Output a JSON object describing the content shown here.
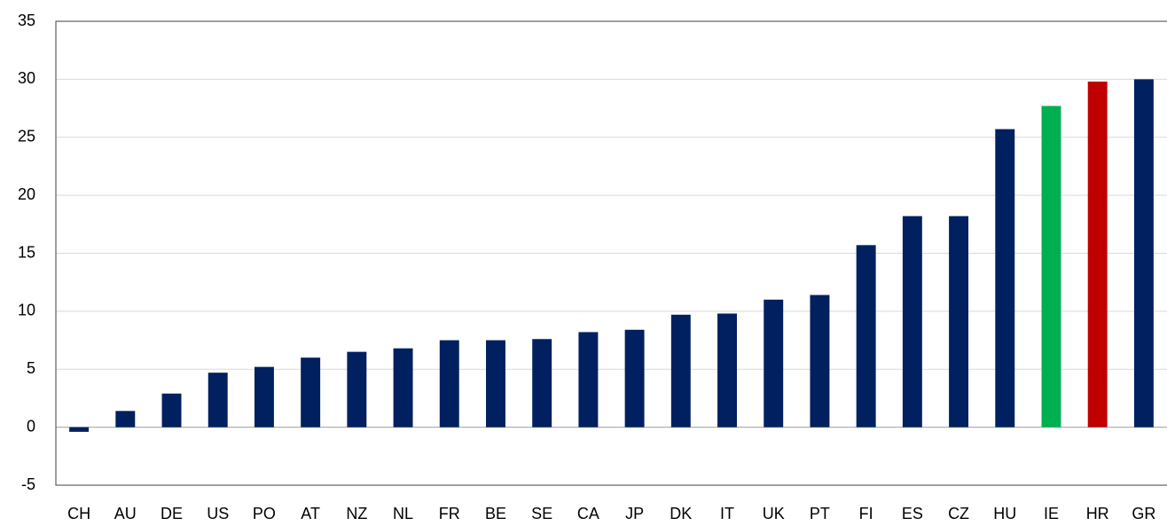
{
  "chart_data": {
    "type": "bar",
    "categories": [
      "CH",
      "AU",
      "DE",
      "US",
      "PO",
      "AT",
      "NZ",
      "NL",
      "FR",
      "BE",
      "SE",
      "CA",
      "JP",
      "DK",
      "IT",
      "UK",
      "PT",
      "FI",
      "ES",
      "CZ",
      "HU",
      "IE",
      "HR",
      "GR"
    ],
    "values": [
      -0.4,
      1.4,
      2.9,
      4.7,
      5.2,
      6.0,
      6.5,
      6.8,
      7.5,
      7.5,
      7.6,
      8.2,
      8.4,
      9.7,
      9.8,
      11.0,
      11.4,
      15.7,
      18.2,
      18.2,
      25.7,
      27.7,
      29.8,
      30.0
    ],
    "colors": [
      "#002060",
      "#002060",
      "#002060",
      "#002060",
      "#002060",
      "#002060",
      "#002060",
      "#002060",
      "#002060",
      "#002060",
      "#002060",
      "#002060",
      "#002060",
      "#002060",
      "#002060",
      "#002060",
      "#002060",
      "#002060",
      "#002060",
      "#002060",
      "#002060",
      "#00b050",
      "#c00000",
      "#002060"
    ],
    "ylim": [
      -5,
      35
    ],
    "yticks": [
      -5,
      0,
      5,
      10,
      15,
      20,
      25,
      30,
      35
    ],
    "grid": true
  }
}
